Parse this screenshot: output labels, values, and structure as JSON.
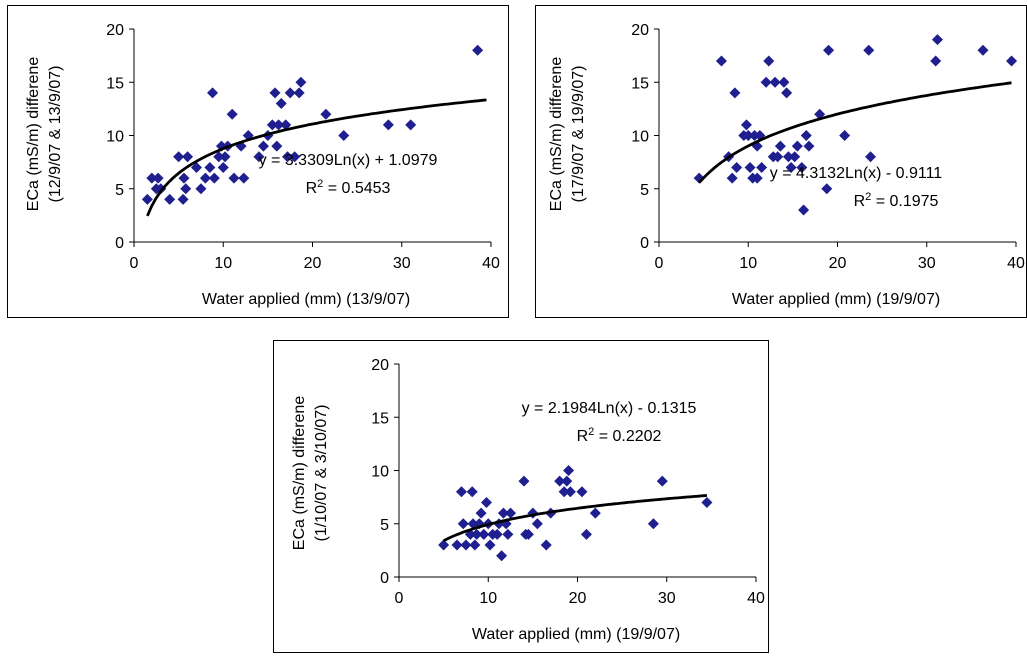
{
  "colors": {
    "marker": "#1f1f8f",
    "trend": "#000000",
    "axis": "#000000"
  },
  "chart_data": [
    {
      "type": "scatter",
      "xlabel": "Water applied (mm) (13/9/07)",
      "ylabel_line1": "ECa (mS/m) differene",
      "ylabel_line2": "(12/9/07 & 13/9/07)",
      "xlim": [
        0,
        40
      ],
      "ylim": [
        0,
        20
      ],
      "xticks": [
        0,
        10,
        20,
        30,
        40
      ],
      "yticks": [
        0,
        5,
        10,
        15,
        20
      ],
      "trendline": {
        "type": "logarithmic",
        "a": 3.3309,
        "b": 1.0979,
        "x_start": 1.5,
        "x_end": 39.5,
        "equation": "y = 3.3309Ln(x) + 1.0979",
        "r2_label": "R",
        "r2_value": " = 0.5453"
      },
      "points": [
        [
          1.5,
          4
        ],
        [
          2,
          6
        ],
        [
          2.5,
          5
        ],
        [
          2.7,
          6
        ],
        [
          3,
          5
        ],
        [
          4,
          4
        ],
        [
          5,
          8
        ],
        [
          5.5,
          4
        ],
        [
          5.6,
          6
        ],
        [
          5.8,
          5
        ],
        [
          6,
          8
        ],
        [
          7,
          7
        ],
        [
          7.5,
          5
        ],
        [
          8,
          6
        ],
        [
          8.5,
          7
        ],
        [
          8.8,
          14
        ],
        [
          9,
          6
        ],
        [
          9.5,
          8
        ],
        [
          9.8,
          9
        ],
        [
          10,
          7
        ],
        [
          10.2,
          8
        ],
        [
          10.5,
          9
        ],
        [
          11,
          12
        ],
        [
          11.2,
          6
        ],
        [
          12,
          9
        ],
        [
          12.3,
          6
        ],
        [
          12.8,
          10
        ],
        [
          14,
          8
        ],
        [
          14.5,
          9
        ],
        [
          15,
          10
        ],
        [
          15.5,
          11
        ],
        [
          15.8,
          14
        ],
        [
          16,
          9
        ],
        [
          16.2,
          11
        ],
        [
          16.5,
          13
        ],
        [
          17,
          11
        ],
        [
          17.2,
          8
        ],
        [
          17.5,
          14
        ],
        [
          18,
          8
        ],
        [
          18.5,
          14
        ],
        [
          18.7,
          15
        ],
        [
          21.5,
          12
        ],
        [
          23.5,
          10
        ],
        [
          28.5,
          11
        ],
        [
          31,
          11
        ],
        [
          38.5,
          18
        ]
      ]
    },
    {
      "type": "scatter",
      "xlabel": "Water applied (mm) (19/9/07)",
      "ylabel_line1": "ECa (mS/m) differene",
      "ylabel_line2": "(17/9/07 & 19/9/07)",
      "xlim": [
        0,
        40
      ],
      "ylim": [
        0,
        20
      ],
      "xticks": [
        0,
        10,
        20,
        30,
        40
      ],
      "yticks": [
        0,
        5,
        10,
        15,
        20
      ],
      "trendline": {
        "type": "logarithmic",
        "a": 4.3132,
        "b": -0.9111,
        "x_start": 4.5,
        "x_end": 39.5,
        "equation": "y = 4.3132Ln(x) - 0.9111",
        "r2_label": "R",
        "r2_value": " = 0.1975"
      },
      "points": [
        [
          4.5,
          6
        ],
        [
          7,
          17
        ],
        [
          7.8,
          8
        ],
        [
          8.2,
          6
        ],
        [
          8.5,
          14
        ],
        [
          8.7,
          7
        ],
        [
          9.5,
          10
        ],
        [
          9.8,
          11
        ],
        [
          10,
          10
        ],
        [
          10.2,
          7
        ],
        [
          10.5,
          6
        ],
        [
          10.7,
          10
        ],
        [
          11,
          6
        ],
        [
          11,
          9
        ],
        [
          11.3,
          10
        ],
        [
          11.5,
          7
        ],
        [
          12,
          15
        ],
        [
          12.3,
          17
        ],
        [
          12.8,
          8
        ],
        [
          13,
          15
        ],
        [
          13.3,
          8
        ],
        [
          13.6,
          9
        ],
        [
          14,
          15
        ],
        [
          14.3,
          14
        ],
        [
          14.5,
          8
        ],
        [
          14.8,
          7
        ],
        [
          15.2,
          8
        ],
        [
          15.5,
          9
        ],
        [
          16,
          7
        ],
        [
          16.2,
          3
        ],
        [
          16.5,
          10
        ],
        [
          16.8,
          9
        ],
        [
          18,
          12
        ],
        [
          18.8,
          5
        ],
        [
          19,
          18
        ],
        [
          20.8,
          10
        ],
        [
          23.5,
          18
        ],
        [
          23.7,
          8
        ],
        [
          31,
          17
        ],
        [
          31.2,
          19
        ],
        [
          36.3,
          18
        ],
        [
          39.5,
          17
        ]
      ]
    },
    {
      "type": "scatter",
      "xlabel": "Water applied (mm) (19/9/07)",
      "ylabel_line1": "ECa (mS/m) differene",
      "ylabel_line2": "(1/10/07 & 3/10/07)",
      "xlim": [
        0,
        40
      ],
      "ylim": [
        0,
        20
      ],
      "xticks": [
        0,
        10,
        20,
        30,
        40
      ],
      "yticks": [
        0,
        5,
        10,
        15,
        20
      ],
      "trendline": {
        "type": "logarithmic",
        "a": 2.1984,
        "b": -0.1315,
        "x_start": 5,
        "x_end": 34.5,
        "equation": "y = 2.1984Ln(x) - 0.1315",
        "r2_label": "R",
        "r2_value": " = 0.2202"
      },
      "points": [
        [
          5,
          3
        ],
        [
          6.5,
          3
        ],
        [
          7,
          8
        ],
        [
          7.2,
          5
        ],
        [
          7.5,
          3
        ],
        [
          8,
          4
        ],
        [
          8.2,
          8
        ],
        [
          8.3,
          5
        ],
        [
          8.5,
          3
        ],
        [
          8.7,
          4
        ],
        [
          9,
          5
        ],
        [
          9.2,
          6
        ],
        [
          9.5,
          4
        ],
        [
          9.8,
          7
        ],
        [
          10,
          5
        ],
        [
          10.2,
          3
        ],
        [
          10.5,
          4
        ],
        [
          11,
          4
        ],
        [
          11.2,
          5
        ],
        [
          11.5,
          2
        ],
        [
          11.7,
          6
        ],
        [
          12,
          5
        ],
        [
          12.2,
          4
        ],
        [
          12.5,
          6
        ],
        [
          14,
          9
        ],
        [
          14.2,
          4
        ],
        [
          14.5,
          4
        ],
        [
          15,
          6
        ],
        [
          15.5,
          5
        ],
        [
          16.5,
          3
        ],
        [
          17,
          6
        ],
        [
          18,
          9
        ],
        [
          18.5,
          8
        ],
        [
          18.8,
          9
        ],
        [
          19,
          10
        ],
        [
          19.2,
          8
        ],
        [
          20.5,
          8
        ],
        [
          21,
          4
        ],
        [
          22,
          6
        ],
        [
          28.5,
          5
        ],
        [
          29.5,
          9
        ],
        [
          34.5,
          7
        ]
      ]
    }
  ]
}
